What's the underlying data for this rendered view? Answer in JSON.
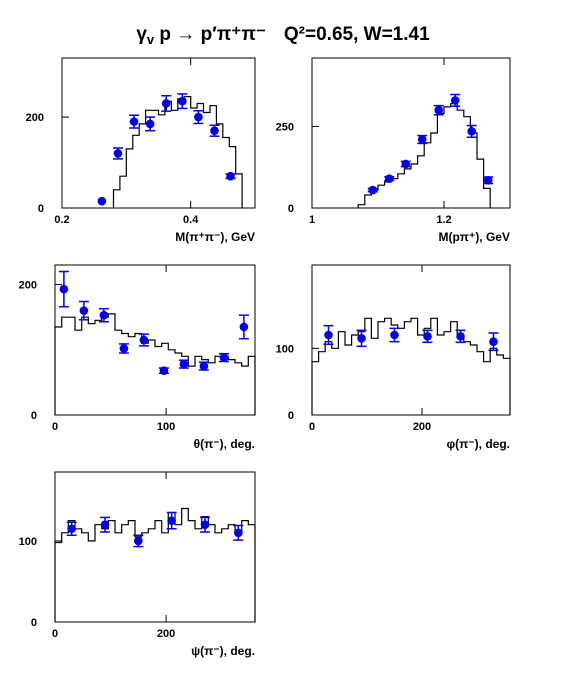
{
  "title": {
    "reaction": "γ_v p → p′π⁺π⁻",
    "kinematics": "Q²=0.65, W=1.41"
  },
  "chart_data": [
    {
      "type": "histogram+scatter",
      "xlabel": "M(π⁺π⁻), GeV",
      "xlim": [
        0.2,
        0.5
      ],
      "ylim": [
        0,
        330
      ],
      "xticks": [
        0.2,
        0.4
      ],
      "xticklabels": [
        "0.2",
        "0.4"
      ],
      "yticks": [
        0,
        200
      ],
      "yticklabels": [
        "0",
        "200"
      ],
      "hist": {
        "edges": [
          0.28,
          0.29,
          0.3,
          0.31,
          0.32,
          0.33,
          0.34,
          0.35,
          0.36,
          0.37,
          0.38,
          0.39,
          0.4,
          0.41,
          0.42,
          0.43,
          0.44,
          0.45,
          0.46,
          0.47,
          0.48
        ],
        "values": [
          40,
          70,
          130,
          160,
          185,
          215,
          215,
          205,
          235,
          215,
          240,
          245,
          220,
          230,
          210,
          225,
          185,
          155,
          135,
          75
        ]
      },
      "points": [
        {
          "x": 0.262,
          "y": 15,
          "err": 0
        },
        {
          "x": 0.287,
          "y": 120,
          "err": 12
        },
        {
          "x": 0.312,
          "y": 190,
          "err": 14
        },
        {
          "x": 0.337,
          "y": 185,
          "err": 15
        },
        {
          "x": 0.362,
          "y": 230,
          "err": 17
        },
        {
          "x": 0.387,
          "y": 235,
          "err": 16
        },
        {
          "x": 0.412,
          "y": 200,
          "err": 14
        },
        {
          "x": 0.437,
          "y": 170,
          "err": 12
        },
        {
          "x": 0.462,
          "y": 70,
          "err": 5
        }
      ]
    },
    {
      "type": "histogram+scatter",
      "xlabel": "M(pπ⁺), GeV",
      "xlim": [
        1.0,
        1.3
      ],
      "ylim": [
        0,
        460
      ],
      "xticks": [
        1.0,
        1.2
      ],
      "xticklabels": [
        "1",
        "1.2"
      ],
      "yticks": [
        0,
        250
      ],
      "yticklabels": [
        "0",
        "250"
      ],
      "hist": {
        "edges": [
          1.07,
          1.08,
          1.09,
          1.1,
          1.11,
          1.12,
          1.13,
          1.14,
          1.15,
          1.16,
          1.17,
          1.18,
          1.19,
          1.2,
          1.21,
          1.22,
          1.23,
          1.24,
          1.25,
          1.26,
          1.27
        ],
        "values": [
          10,
          40,
          55,
          70,
          80,
          90,
          105,
          120,
          135,
          160,
          200,
          230,
          290,
          310,
          320,
          300,
          280,
          230,
          150,
          60
        ]
      },
      "points": [
        {
          "x": 1.092,
          "y": 55,
          "err": 5
        },
        {
          "x": 1.117,
          "y": 90,
          "err": 6
        },
        {
          "x": 1.142,
          "y": 135,
          "err": 8
        },
        {
          "x": 1.167,
          "y": 210,
          "err": 12
        },
        {
          "x": 1.192,
          "y": 300,
          "err": 14
        },
        {
          "x": 1.217,
          "y": 330,
          "err": 18
        },
        {
          "x": 1.242,
          "y": 235,
          "err": 18
        },
        {
          "x": 1.267,
          "y": 85,
          "err": 10
        }
      ]
    },
    {
      "type": "histogram+scatter",
      "xlabel": "θ(π⁻), deg.",
      "xlim": [
        0,
        180
      ],
      "ylim": [
        0,
        230
      ],
      "xticks": [
        0,
        100
      ],
      "xticklabels": [
        "0",
        "100"
      ],
      "yticks": [
        0,
        200
      ],
      "yticklabels": [
        "0",
        "200"
      ],
      "hist": {
        "edges": [
          0,
          6,
          12,
          18,
          24,
          30,
          36,
          42,
          48,
          54,
          60,
          66,
          72,
          78,
          84,
          90,
          96,
          102,
          108,
          114,
          120,
          126,
          132,
          138,
          144,
          150,
          156,
          162,
          168,
          174,
          180
        ],
        "values": [
          135,
          150,
          150,
          130,
          150,
          140,
          145,
          150,
          155,
          130,
          125,
          120,
          125,
          110,
          115,
          105,
          110,
          100,
          95,
          90,
          75,
          90,
          85,
          80,
          90,
          90,
          85,
          80,
          75,
          90
        ]
      },
      "points": [
        {
          "x": 8,
          "y": 193,
          "err": 27
        },
        {
          "x": 26,
          "y": 160,
          "err": 14
        },
        {
          "x": 44,
          "y": 153,
          "err": 10
        },
        {
          "x": 62,
          "y": 102,
          "err": 7
        },
        {
          "x": 80,
          "y": 115,
          "err": 9
        },
        {
          "x": 98,
          "y": 68,
          "err": 4
        },
        {
          "x": 116,
          "y": 78,
          "err": 6
        },
        {
          "x": 134,
          "y": 75,
          "err": 6
        },
        {
          "x": 152,
          "y": 88,
          "err": 6
        },
        {
          "x": 170,
          "y": 135,
          "err": 18
        }
      ]
    },
    {
      "type": "histogram+scatter",
      "xlabel": "φ(π⁻), deg.",
      "xlim": [
        0,
        360
      ],
      "ylim": [
        0,
        225
      ],
      "xticks": [
        0,
        200
      ],
      "xticklabels": [
        "0",
        "200"
      ],
      "yticks": [
        0,
        100
      ],
      "yticklabels": [
        "0",
        "100"
      ],
      "hist": {
        "edges": [
          0,
          12,
          24,
          36,
          48,
          60,
          72,
          84,
          96,
          108,
          120,
          132,
          144,
          156,
          168,
          180,
          192,
          204,
          216,
          228,
          240,
          252,
          264,
          276,
          288,
          300,
          312,
          324,
          336,
          348,
          360
        ],
        "values": [
          80,
          95,
          110,
          100,
          125,
          105,
          120,
          125,
          145,
          115,
          140,
          145,
          135,
          130,
          140,
          145,
          120,
          130,
          145,
          120,
          125,
          140,
          120,
          110,
          105,
          95,
          80,
          100,
          90,
          85
        ]
      },
      "points": [
        {
          "x": 30,
          "y": 120,
          "err": 14
        },
        {
          "x": 90,
          "y": 115,
          "err": 12
        },
        {
          "x": 150,
          "y": 120,
          "err": 10
        },
        {
          "x": 210,
          "y": 118,
          "err": 9
        },
        {
          "x": 270,
          "y": 118,
          "err": 9
        },
        {
          "x": 330,
          "y": 110,
          "err": 13
        }
      ]
    },
    {
      "type": "histogram+scatter",
      "xlabel": "ψ(π⁻), deg.",
      "xlim": [
        0,
        360
      ],
      "ylim": [
        0,
        185
      ],
      "xticks": [
        0,
        200
      ],
      "xticklabels": [
        "0",
        "200"
      ],
      "yticks": [
        0,
        100
      ],
      "yticklabels": [
        "0",
        "100"
      ],
      "hist": {
        "edges": [
          0,
          12,
          24,
          36,
          48,
          60,
          72,
          84,
          96,
          108,
          120,
          132,
          144,
          156,
          168,
          180,
          192,
          204,
          216,
          228,
          240,
          252,
          264,
          276,
          288,
          300,
          312,
          324,
          336,
          348,
          360
        ],
        "values": [
          98,
          110,
          125,
          115,
          110,
          100,
          120,
          115,
          125,
          110,
          120,
          125,
          105,
          110,
          115,
          125,
          110,
          135,
          120,
          140,
          125,
          115,
          130,
          120,
          110,
          115,
          120,
          110,
          125,
          120
        ]
      },
      "points": [
        {
          "x": 30,
          "y": 115,
          "err": 8
        },
        {
          "x": 90,
          "y": 120,
          "err": 9
        },
        {
          "x": 150,
          "y": 100,
          "err": 7
        },
        {
          "x": 210,
          "y": 125,
          "err": 10
        },
        {
          "x": 270,
          "y": 120,
          "err": 9
        },
        {
          "x": 330,
          "y": 110,
          "err": 9
        }
      ]
    }
  ]
}
